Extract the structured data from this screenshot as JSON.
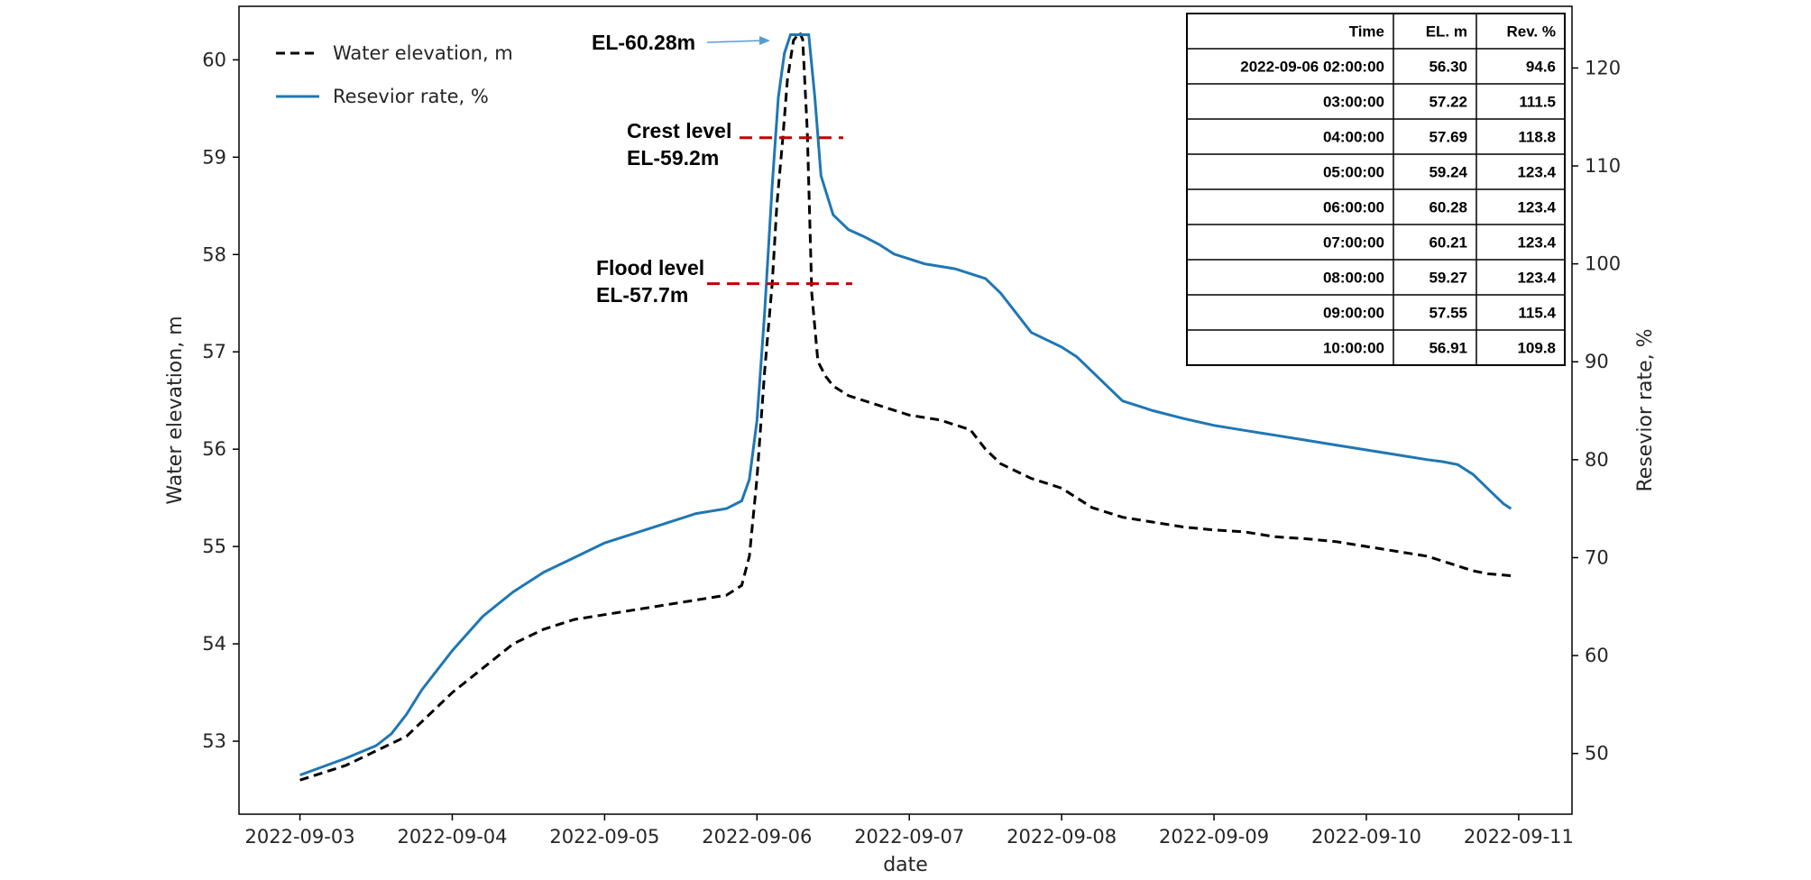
{
  "chart_data": {
    "type": "line",
    "xlabel": "date",
    "ylabel_left": "Water elevation, m",
    "ylabel_right": "Resevior rate, %",
    "x_ticks": [
      "2022-09-03",
      "2022-09-04",
      "2022-09-05",
      "2022-09-06",
      "2022-09-07",
      "2022-09-08",
      "2022-09-09",
      "2022-09-10",
      "2022-09-11"
    ],
    "y_left_ticks": [
      53,
      54,
      55,
      56,
      57,
      58,
      59,
      60
    ],
    "y_right_ticks": [
      50,
      60,
      70,
      80,
      90,
      100,
      110,
      120
    ],
    "y_left_range": [
      52.25,
      60.55
    ],
    "y_right_range": [
      43.8,
      126.3
    ],
    "x_range_days": [
      -0.4,
      8.35
    ],
    "legend": [
      {
        "label": "Water elevation, m",
        "style": "dashed",
        "color": "#000000"
      },
      {
        "label": "Resevior rate, %",
        "style": "solid",
        "color": "#1f77b4"
      }
    ],
    "series": [
      {
        "name": "Water elevation, m",
        "axis": "left",
        "color": "#000000",
        "style": "dashed",
        "x": [
          0,
          0.3,
          0.5,
          0.7,
          0.8,
          0.9,
          1.0,
          1.2,
          1.4,
          1.6,
          1.8,
          2.0,
          2.2,
          2.4,
          2.6,
          2.8,
          2.9,
          2.95,
          3.0,
          3.05,
          3.1,
          3.13,
          3.17,
          3.2,
          3.24,
          3.28,
          3.3,
          3.33,
          3.36,
          3.4,
          3.45,
          3.5,
          3.6,
          3.8,
          4.0,
          4.2,
          4.3,
          4.4,
          4.5,
          4.6,
          4.8,
          5.0,
          5.2,
          5.4,
          5.6,
          5.8,
          6.0,
          6.2,
          6.4,
          6.6,
          6.8,
          7.0,
          7.2,
          7.4,
          7.5,
          7.6,
          7.7,
          7.8,
          7.95
        ],
        "values": [
          52.6,
          52.75,
          52.9,
          53.05,
          53.2,
          53.35,
          53.5,
          53.75,
          54.0,
          54.15,
          54.25,
          54.3,
          54.35,
          54.4,
          54.45,
          54.5,
          54.6,
          54.9,
          55.7,
          56.8,
          57.7,
          58.5,
          59.2,
          59.8,
          60.2,
          60.28,
          60.21,
          59.27,
          57.6,
          56.9,
          56.75,
          56.65,
          56.55,
          56.45,
          56.35,
          56.3,
          56.25,
          56.2,
          56.0,
          55.85,
          55.7,
          55.6,
          55.4,
          55.3,
          55.25,
          55.2,
          55.17,
          55.15,
          55.1,
          55.08,
          55.05,
          55.0,
          54.95,
          54.9,
          54.85,
          54.8,
          54.75,
          54.72,
          54.7
        ]
      },
      {
        "name": "Resevior rate, %",
        "axis": "right",
        "color": "#1f77b4",
        "style": "solid",
        "x": [
          0,
          0.3,
          0.5,
          0.6,
          0.7,
          0.8,
          0.9,
          1.0,
          1.2,
          1.4,
          1.6,
          1.8,
          2.0,
          2.2,
          2.4,
          2.6,
          2.8,
          2.9,
          2.95,
          3.0,
          3.05,
          3.1,
          3.14,
          3.18,
          3.22,
          3.26,
          3.3,
          3.34,
          3.38,
          3.42,
          3.5,
          3.6,
          3.7,
          3.8,
          3.9,
          4.0,
          4.1,
          4.3,
          4.5,
          4.6,
          4.7,
          4.8,
          5.0,
          5.1,
          5.2,
          5.3,
          5.4,
          5.6,
          5.8,
          6.0,
          6.2,
          6.4,
          6.6,
          6.8,
          7.0,
          7.2,
          7.4,
          7.5,
          7.6,
          7.7,
          7.8,
          7.9,
          7.95
        ],
        "values": [
          47.8,
          49.5,
          50.8,
          52.0,
          54.0,
          56.5,
          58.5,
          60.5,
          64.0,
          66.5,
          68.5,
          70.0,
          71.5,
          72.5,
          73.5,
          74.5,
          75.0,
          75.8,
          78.0,
          84.0,
          95.0,
          108.0,
          117.0,
          121.5,
          123.4,
          123.4,
          123.4,
          123.4,
          117.0,
          109.0,
          105.0,
          103.5,
          102.8,
          102.0,
          101.0,
          100.5,
          100.0,
          99.5,
          98.5,
          97.0,
          95.0,
          93.0,
          91.5,
          90.5,
          89.0,
          87.5,
          86.0,
          85.0,
          84.2,
          83.5,
          83.0,
          82.5,
          82.0,
          81.5,
          81.0,
          80.5,
          80.0,
          79.8,
          79.5,
          78.5,
          77.0,
          75.5,
          75.0
        ]
      }
    ],
    "annotations": [
      {
        "text": "EL-60.28m",
        "type": "arrow"
      },
      {
        "text": "Crest level",
        "text2": "EL-59.2m",
        "value_m": 59.2,
        "color": "#c00000"
      },
      {
        "text": "Flood level",
        "text2": "EL-57.7m",
        "value_m": 57.7,
        "color": "#c00000"
      }
    ],
    "table": {
      "headers": [
        "Time",
        "EL. m",
        "Rev. %"
      ],
      "rows": [
        [
          "2022-09-06 02:00:00",
          "56.30",
          "94.6"
        ],
        [
          "03:00:00",
          "57.22",
          "111.5"
        ],
        [
          "04:00:00",
          "57.69",
          "118.8"
        ],
        [
          "05:00:00",
          "59.24",
          "123.4"
        ],
        [
          "06:00:00",
          "60.28",
          "123.4"
        ],
        [
          "07:00:00",
          "60.21",
          "123.4"
        ],
        [
          "08:00:00",
          "59.27",
          "123.4"
        ],
        [
          "09:00:00",
          "57.55",
          "115.4"
        ],
        [
          "10:00:00",
          "56.91",
          "109.8"
        ]
      ]
    }
  }
}
